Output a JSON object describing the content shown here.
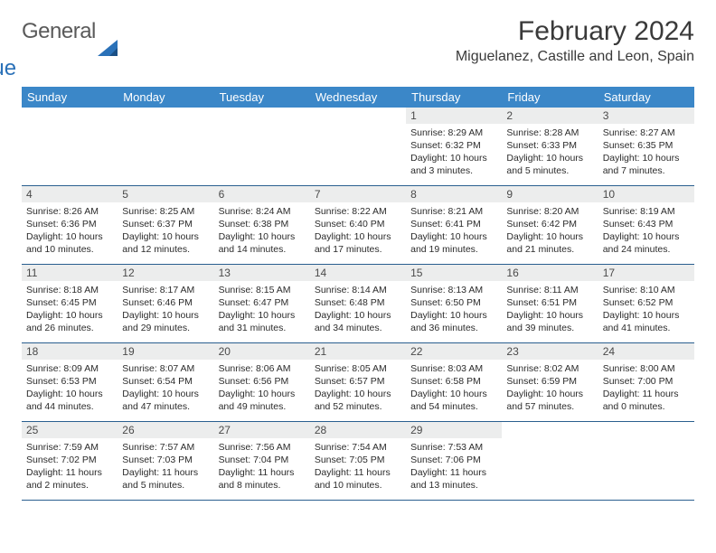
{
  "brand": {
    "line1": "General",
    "line2": "Blue"
  },
  "title": "February 2024",
  "location": "Miguelanez, Castille and Leon, Spain",
  "colors": {
    "header_bar": "#3b87c8",
    "header_text": "#ffffff",
    "daynum_bg": "#eceded",
    "daynum_text": "#4a4a4a",
    "row_border": "#2a5f8f",
    "body_text": "#2b2b2b",
    "brand_gray": "#5a5a5a",
    "brand_blue": "#2a71b8"
  },
  "dow": [
    "Sunday",
    "Monday",
    "Tuesday",
    "Wednesday",
    "Thursday",
    "Friday",
    "Saturday"
  ],
  "weeks": [
    [
      null,
      null,
      null,
      null,
      {
        "n": "1",
        "sr": "8:29 AM",
        "ss": "6:32 PM",
        "dl": "10 hours and 3 minutes."
      },
      {
        "n": "2",
        "sr": "8:28 AM",
        "ss": "6:33 PM",
        "dl": "10 hours and 5 minutes."
      },
      {
        "n": "3",
        "sr": "8:27 AM",
        "ss": "6:35 PM",
        "dl": "10 hours and 7 minutes."
      }
    ],
    [
      {
        "n": "4",
        "sr": "8:26 AM",
        "ss": "6:36 PM",
        "dl": "10 hours and 10 minutes."
      },
      {
        "n": "5",
        "sr": "8:25 AM",
        "ss": "6:37 PM",
        "dl": "10 hours and 12 minutes."
      },
      {
        "n": "6",
        "sr": "8:24 AM",
        "ss": "6:38 PM",
        "dl": "10 hours and 14 minutes."
      },
      {
        "n": "7",
        "sr": "8:22 AM",
        "ss": "6:40 PM",
        "dl": "10 hours and 17 minutes."
      },
      {
        "n": "8",
        "sr": "8:21 AM",
        "ss": "6:41 PM",
        "dl": "10 hours and 19 minutes."
      },
      {
        "n": "9",
        "sr": "8:20 AM",
        "ss": "6:42 PM",
        "dl": "10 hours and 21 minutes."
      },
      {
        "n": "10",
        "sr": "8:19 AM",
        "ss": "6:43 PM",
        "dl": "10 hours and 24 minutes."
      }
    ],
    [
      {
        "n": "11",
        "sr": "8:18 AM",
        "ss": "6:45 PM",
        "dl": "10 hours and 26 minutes."
      },
      {
        "n": "12",
        "sr": "8:17 AM",
        "ss": "6:46 PM",
        "dl": "10 hours and 29 minutes."
      },
      {
        "n": "13",
        "sr": "8:15 AM",
        "ss": "6:47 PM",
        "dl": "10 hours and 31 minutes."
      },
      {
        "n": "14",
        "sr": "8:14 AM",
        "ss": "6:48 PM",
        "dl": "10 hours and 34 minutes."
      },
      {
        "n": "15",
        "sr": "8:13 AM",
        "ss": "6:50 PM",
        "dl": "10 hours and 36 minutes."
      },
      {
        "n": "16",
        "sr": "8:11 AM",
        "ss": "6:51 PM",
        "dl": "10 hours and 39 minutes."
      },
      {
        "n": "17",
        "sr": "8:10 AM",
        "ss": "6:52 PM",
        "dl": "10 hours and 41 minutes."
      }
    ],
    [
      {
        "n": "18",
        "sr": "8:09 AM",
        "ss": "6:53 PM",
        "dl": "10 hours and 44 minutes."
      },
      {
        "n": "19",
        "sr": "8:07 AM",
        "ss": "6:54 PM",
        "dl": "10 hours and 47 minutes."
      },
      {
        "n": "20",
        "sr": "8:06 AM",
        "ss": "6:56 PM",
        "dl": "10 hours and 49 minutes."
      },
      {
        "n": "21",
        "sr": "8:05 AM",
        "ss": "6:57 PM",
        "dl": "10 hours and 52 minutes."
      },
      {
        "n": "22",
        "sr": "8:03 AM",
        "ss": "6:58 PM",
        "dl": "10 hours and 54 minutes."
      },
      {
        "n": "23",
        "sr": "8:02 AM",
        "ss": "6:59 PM",
        "dl": "10 hours and 57 minutes."
      },
      {
        "n": "24",
        "sr": "8:00 AM",
        "ss": "7:00 PM",
        "dl": "11 hours and 0 minutes."
      }
    ],
    [
      {
        "n": "25",
        "sr": "7:59 AM",
        "ss": "7:02 PM",
        "dl": "11 hours and 2 minutes."
      },
      {
        "n": "26",
        "sr": "7:57 AM",
        "ss": "7:03 PM",
        "dl": "11 hours and 5 minutes."
      },
      {
        "n": "27",
        "sr": "7:56 AM",
        "ss": "7:04 PM",
        "dl": "11 hours and 8 minutes."
      },
      {
        "n": "28",
        "sr": "7:54 AM",
        "ss": "7:05 PM",
        "dl": "11 hours and 10 minutes."
      },
      {
        "n": "29",
        "sr": "7:53 AM",
        "ss": "7:06 PM",
        "dl": "11 hours and 13 minutes."
      },
      null,
      null
    ]
  ],
  "labels": {
    "sunrise": "Sunrise: ",
    "sunset": "Sunset: ",
    "daylight": "Daylight: "
  }
}
